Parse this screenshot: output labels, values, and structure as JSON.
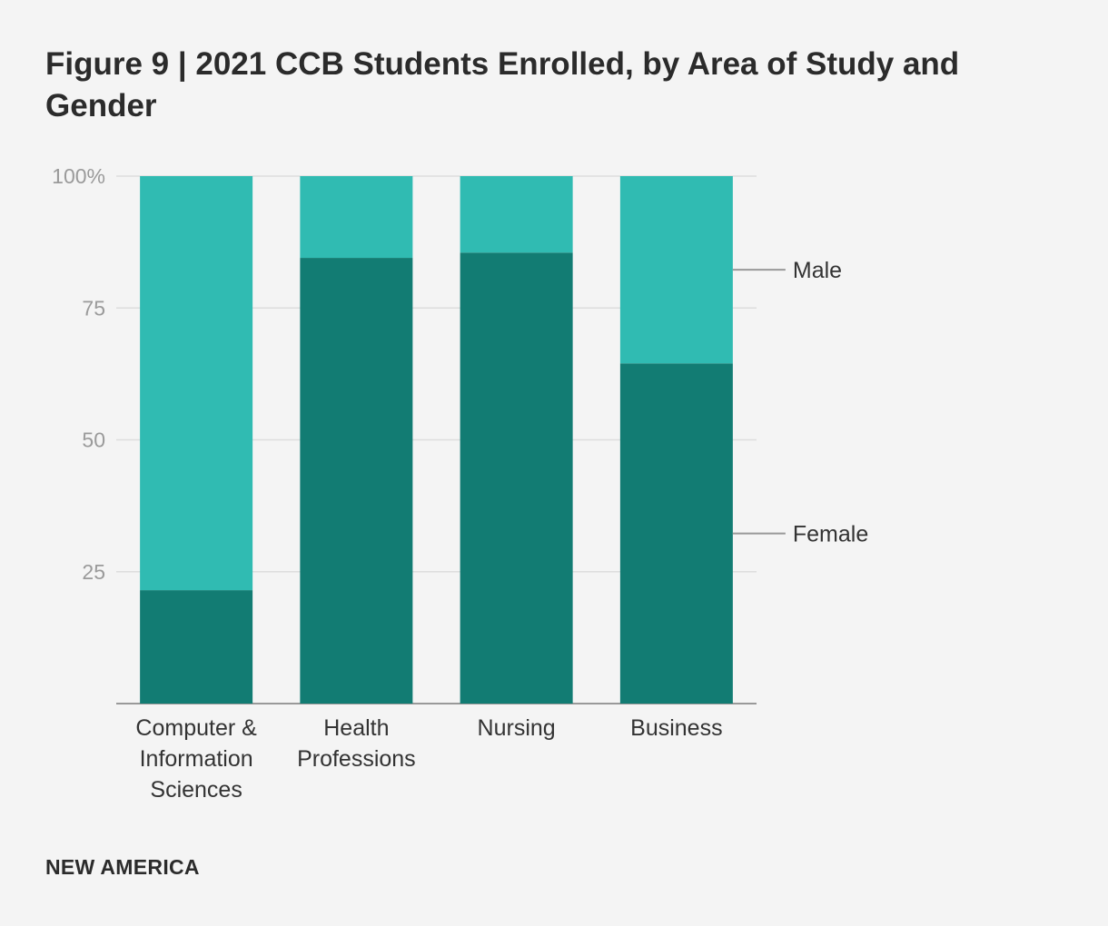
{
  "title": "Figure 9 | 2021 CCB Students Enrolled, by Area of Study and Gender",
  "footer": "NEW AMERICA",
  "colors": {
    "female": "#127c73",
    "male": "#30bbb2",
    "grid": "#dddddd",
    "axis": "#999999"
  },
  "chart_data": {
    "type": "bar",
    "stacked": true,
    "title": "Figure 9 | 2021 CCB Students Enrolled, by Area of Study and Gender",
    "xlabel": "",
    "ylabel": "",
    "ylim": [
      0,
      100
    ],
    "yticks": [
      25,
      50,
      75,
      100
    ],
    "ytick_labels": [
      "25",
      "50",
      "75",
      "100%"
    ],
    "categories": [
      [
        "Computer &",
        "Information",
        "Sciences"
      ],
      [
        "Health",
        "Professions"
      ],
      [
        "Nursing"
      ],
      [
        "Business"
      ]
    ],
    "series": [
      {
        "name": "Female",
        "values": [
          21.5,
          84.5,
          85.5,
          64.5
        ]
      },
      {
        "name": "Male",
        "values": [
          78.5,
          15.5,
          14.5,
          35.5
        ]
      }
    ],
    "legend": "right, labels pointing to last bar"
  }
}
